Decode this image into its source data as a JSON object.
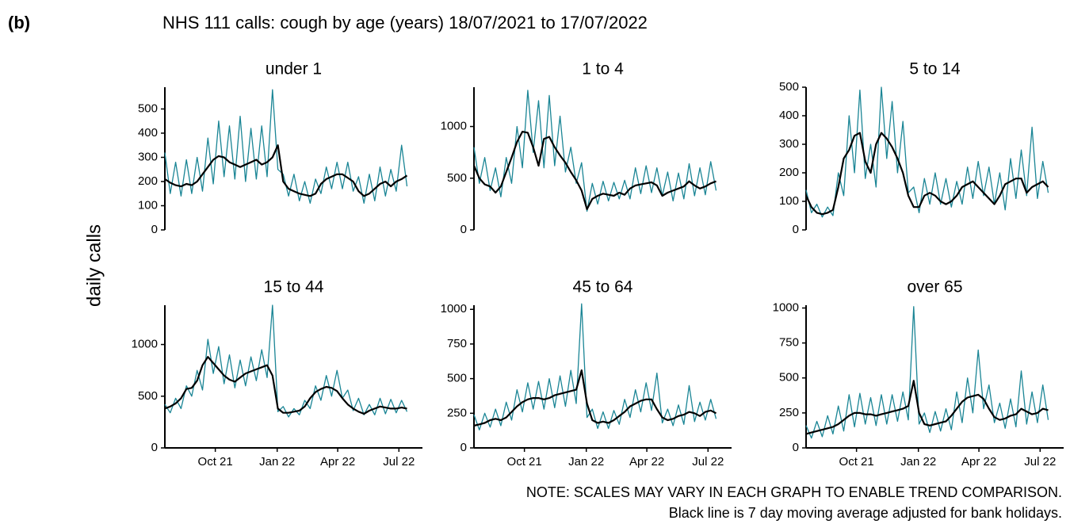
{
  "panel_label": "(b)",
  "title": "NHS 111 calls: cough by age (years) 18/07/2021 to 17/07/2022",
  "notes": [
    "NOTE: SCALES MAY VARY IN EACH GRAPH TO ENABLE TREND COMPARISON.",
    "Black line is 7 day moving average adjusted for bank holidays."
  ],
  "chart_data": {
    "type": "line",
    "ylabel": "daily calls",
    "x": [
      "2021-07-18",
      "2021-07-26",
      "2021-08-03",
      "2021-08-11",
      "2021-08-19",
      "2021-08-27",
      "2021-09-04",
      "2021-09-12",
      "2021-09-20",
      "2021-09-28",
      "2021-10-06",
      "2021-10-14",
      "2021-10-22",
      "2021-10-30",
      "2021-11-07",
      "2021-11-15",
      "2021-11-23",
      "2021-12-01",
      "2021-12-09",
      "2021-12-17",
      "2021-12-25",
      "2022-01-02",
      "2022-01-10",
      "2022-01-18",
      "2022-01-26",
      "2022-02-03",
      "2022-02-11",
      "2022-02-19",
      "2022-02-27",
      "2022-03-07",
      "2022-03-15",
      "2022-03-23",
      "2022-03-31",
      "2022-04-08",
      "2022-04-16",
      "2022-04-24",
      "2022-05-02",
      "2022-05-10",
      "2022-05-18",
      "2022-05-26",
      "2022-06-03",
      "2022-06-11",
      "2022-06-19",
      "2022-06-27",
      "2022-07-05",
      "2022-07-13"
    ],
    "xlim": [
      "2021-07-18",
      "2022-08-05"
    ],
    "xticks": [
      {
        "value": "2021-10-01",
        "label": "Oct 21"
      },
      {
        "value": "2022-01-01",
        "label": "Jan 22"
      },
      {
        "value": "2022-04-01",
        "label": "Apr 22"
      },
      {
        "value": "2022-07-01",
        "label": "Jul 22"
      }
    ],
    "panels": [
      {
        "title": "under 1",
        "ylim": [
          0,
          590
        ],
        "yticks": [
          0,
          100,
          200,
          300,
          400,
          500
        ],
        "series": [
          {
            "color": "#1a8595",
            "values": [
              320,
              150,
              280,
              140,
              290,
              150,
              300,
              160,
              380,
              190,
              450,
              220,
              430,
              210,
              470,
              200,
              420,
              210,
              430,
              220,
              580,
              250,
              230,
              140,
              230,
              120,
              200,
              110,
              210,
              150,
              260,
              170,
              280,
              170,
              280,
              160,
              220,
              110,
              230,
              120,
              260,
              140,
              250,
              160,
              350,
              180
            ]
          },
          {
            "color": "#000000",
            "values": [
              210,
              195,
              185,
              180,
              190,
              185,
              200,
              230,
              260,
              290,
              305,
              300,
              280,
              270,
              260,
              270,
              280,
              290,
              270,
              280,
              300,
              350,
              200,
              170,
              160,
              150,
              145,
              140,
              150,
              190,
              210,
              220,
              230,
              230,
              215,
              200,
              160,
              140,
              150,
              170,
              190,
              200,
              180,
              200,
              210,
              225
            ]
          }
        ]
      },
      {
        "title": "1 to 4",
        "ylim": [
          0,
          1380
        ],
        "yticks": [
          0,
          500,
          1000
        ],
        "series": [
          {
            "color": "#1a8595",
            "values": [
              800,
              450,
              700,
              380,
              600,
              320,
              700,
              450,
              1000,
              600,
              1350,
              750,
              1250,
              600,
              1300,
              620,
              1100,
              560,
              800,
              450,
              650,
              180,
              450,
              250,
              470,
              280,
              460,
              300,
              480,
              300,
              600,
              350,
              620,
              360,
              600,
              330,
              560,
              280,
              550,
              300,
              640,
              330,
              600,
              340,
              660,
              380
            ]
          },
          {
            "color": "#000000",
            "values": [
              620,
              500,
              440,
              420,
              360,
              420,
              560,
              700,
              850,
              950,
              940,
              800,
              620,
              880,
              900,
              800,
              720,
              650,
              560,
              480,
              380,
              200,
              300,
              330,
              350,
              340,
              330,
              360,
              340,
              400,
              430,
              440,
              450,
              460,
              430,
              330,
              360,
              380,
              400,
              420,
              470,
              430,
              400,
              420,
              450,
              470
            ]
          }
        ]
      },
      {
        "title": "5 to 14",
        "ylim": [
          0,
          500
        ],
        "yticks": [
          0,
          100,
          200,
          300,
          400,
          500
        ],
        "series": [
          {
            "color": "#1a8595",
            "values": [
              140,
              60,
              90,
              45,
              80,
              50,
              200,
              120,
              400,
              200,
              490,
              180,
              300,
              150,
              500,
              250,
              450,
              200,
              380,
              130,
              150,
              60,
              180,
              90,
              200,
              90,
              180,
              80,
              170,
              90,
              220,
              110,
              240,
              120,
              220,
              90,
              200,
              70,
              250,
              110,
              280,
              120,
              360,
              110,
              240,
              130
            ]
          },
          {
            "color": "#000000",
            "values": [
              120,
              80,
              60,
              55,
              60,
              70,
              150,
              250,
              280,
              330,
              340,
              240,
              200,
              300,
              340,
              320,
              290,
              250,
              200,
              120,
              80,
              80,
              120,
              130,
              120,
              100,
              90,
              100,
              120,
              150,
              160,
              170,
              150,
              130,
              110,
              90,
              120,
              160,
              170,
              180,
              180,
              130,
              150,
              160,
              170,
              150
            ]
          }
        ]
      },
      {
        "title": "15 to 44",
        "ylim": [
          0,
          1380
        ],
        "yticks": [
          0,
          500,
          1000
        ],
        "series": [
          {
            "color": "#1a8595",
            "values": [
              420,
              340,
              480,
              380,
              600,
              500,
              750,
              560,
              1050,
              720,
              980,
              620,
              900,
              580,
              850,
              600,
              880,
              650,
              950,
              680,
              1380,
              350,
              400,
              300,
              380,
              320,
              460,
              380,
              600,
              460,
              700,
              500,
              750,
              480,
              560,
              360,
              480,
              320,
              420,
              320,
              480,
              330,
              470,
              340,
              460,
              350
            ]
          },
          {
            "color": "#000000",
            "values": [
              380,
              400,
              430,
              480,
              570,
              580,
              650,
              800,
              880,
              820,
              760,
              700,
              660,
              640,
              680,
              720,
              740,
              760,
              780,
              800,
              700,
              380,
              340,
              340,
              350,
              360,
              400,
              480,
              540,
              570,
              590,
              580,
              550,
              480,
              420,
              380,
              350,
              330,
              360,
              380,
              400,
              390,
              380,
              380,
              390,
              380
            ]
          }
        ]
      },
      {
        "title": "45 to 64",
        "ylim": [
          0,
          1030
        ],
        "yticks": [
          0,
          250,
          500,
          750,
          1000
        ],
        "series": [
          {
            "color": "#1a8595",
            "values": [
              240,
              130,
              250,
              150,
              280,
              160,
              330,
              200,
              420,
              260,
              470,
              280,
              480,
              280,
              500,
              290,
              520,
              300,
              560,
              320,
              1040,
              220,
              280,
              140,
              260,
              140,
              270,
              170,
              350,
              220,
              420,
              260,
              470,
              270,
              540,
              180,
              280,
              160,
              310,
              170,
              450,
              190,
              330,
              200,
              350,
              210
            ]
          },
          {
            "color": "#000000",
            "values": [
              160,
              170,
              180,
              200,
              210,
              200,
              220,
              260,
              300,
              330,
              350,
              360,
              360,
              350,
              360,
              380,
              390,
              400,
              410,
              420,
              560,
              320,
              200,
              180,
              190,
              180,
              200,
              230,
              260,
              300,
              320,
              340,
              350,
              350,
              280,
              220,
              200,
              210,
              230,
              240,
              260,
              250,
              230,
              260,
              270,
              250
            ]
          }
        ]
      },
      {
        "title": "over 65",
        "ylim": [
          0,
          1020
        ],
        "yticks": [
          0,
          250,
          500,
          750,
          1000
        ],
        "series": [
          {
            "color": "#1a8595",
            "values": [
              160,
              70,
              190,
              80,
              230,
              100,
              300,
              120,
              380,
              150,
              390,
              170,
              360,
              160,
              380,
              170,
              380,
              190,
              400,
              200,
              1010,
              170,
              250,
              110,
              260,
              120,
              280,
              130,
              400,
              180,
              500,
              250,
              700,
              280,
              450,
              180,
              320,
              140,
              350,
              150,
              550,
              170,
              400,
              180,
              450,
              200
            ]
          },
          {
            "color": "#000000",
            "values": [
              100,
              110,
              120,
              130,
              140,
              150,
              170,
              200,
              230,
              250,
              250,
              240,
              240,
              230,
              240,
              250,
              260,
              270,
              280,
              300,
              480,
              250,
              170,
              160,
              170,
              180,
              190,
              230,
              280,
              330,
              360,
              370,
              380,
              350,
              280,
              220,
              200,
              210,
              230,
              240,
              280,
              260,
              240,
              250,
              280,
              270
            ]
          }
        ]
      }
    ]
  }
}
